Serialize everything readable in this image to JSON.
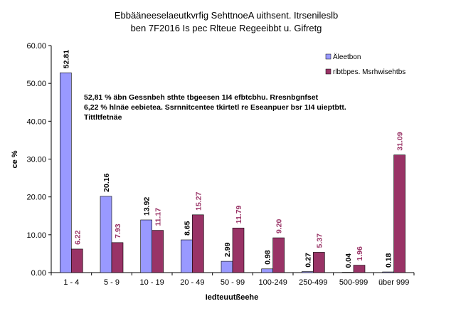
{
  "chart_data": {
    "type": "bar",
    "title_lines": [
      "Ebbääneeselaeutkvrfig SehttnoeA uithsent. Itrsenileslb",
      "ben 7F2016 Is pec Rlteue Regeeibbt u. Gifretg"
    ],
    "xlabel": "Iedteuutßeehe",
    "ylabel": "ce %",
    "ylim": [
      0,
      60
    ],
    "yticks": [
      "0.00",
      "10.00",
      "20.00",
      "30.00",
      "40.00",
      "50.00",
      "60.00"
    ],
    "grid": false,
    "legend_position": "top-right",
    "categories": [
      "1 - 4",
      "5 - 9",
      "10 - 19",
      "20 - 49",
      "50 - 99",
      "100-249",
      "250-499",
      "500-999",
      "über 999"
    ],
    "series": [
      {
        "name": "Äleetbon",
        "color": "#9999ff",
        "label_color": "#000000",
        "values": [
          52.81,
          20.16,
          13.92,
          8.65,
          2.99,
          0.98,
          0.27,
          0.04,
          0.18
        ],
        "labels": [
          "52.81",
          "20.16",
          "13.92",
          "8.65",
          "2.99",
          "0.98",
          "0.27",
          "0.04",
          "0.18"
        ]
      },
      {
        "name": "rlbtbpes. Msrhwisehtbs",
        "color": "#993366",
        "label_color": "#993366",
        "values": [
          6.22,
          7.93,
          11.17,
          15.27,
          11.79,
          9.2,
          5.37,
          1.96,
          31.09
        ],
        "labels": [
          "6.22",
          "7.93",
          "11.17",
          "15.27",
          "11.79",
          "9.20",
          "5.37",
          "1.96",
          "31.09"
        ]
      }
    ],
    "annotation_lines": [
      "52,81 % äbn Gessnbeh sthte tbgeesen 1I4 efbtcbhu. Rresnbgnfset",
      "6,22 % hlnäe eebietea. Ssrnnitcentee tkirtetl re Eseanpuer bsr 1I4 uieptbtt.",
      "Tittltfetnäe"
    ]
  }
}
